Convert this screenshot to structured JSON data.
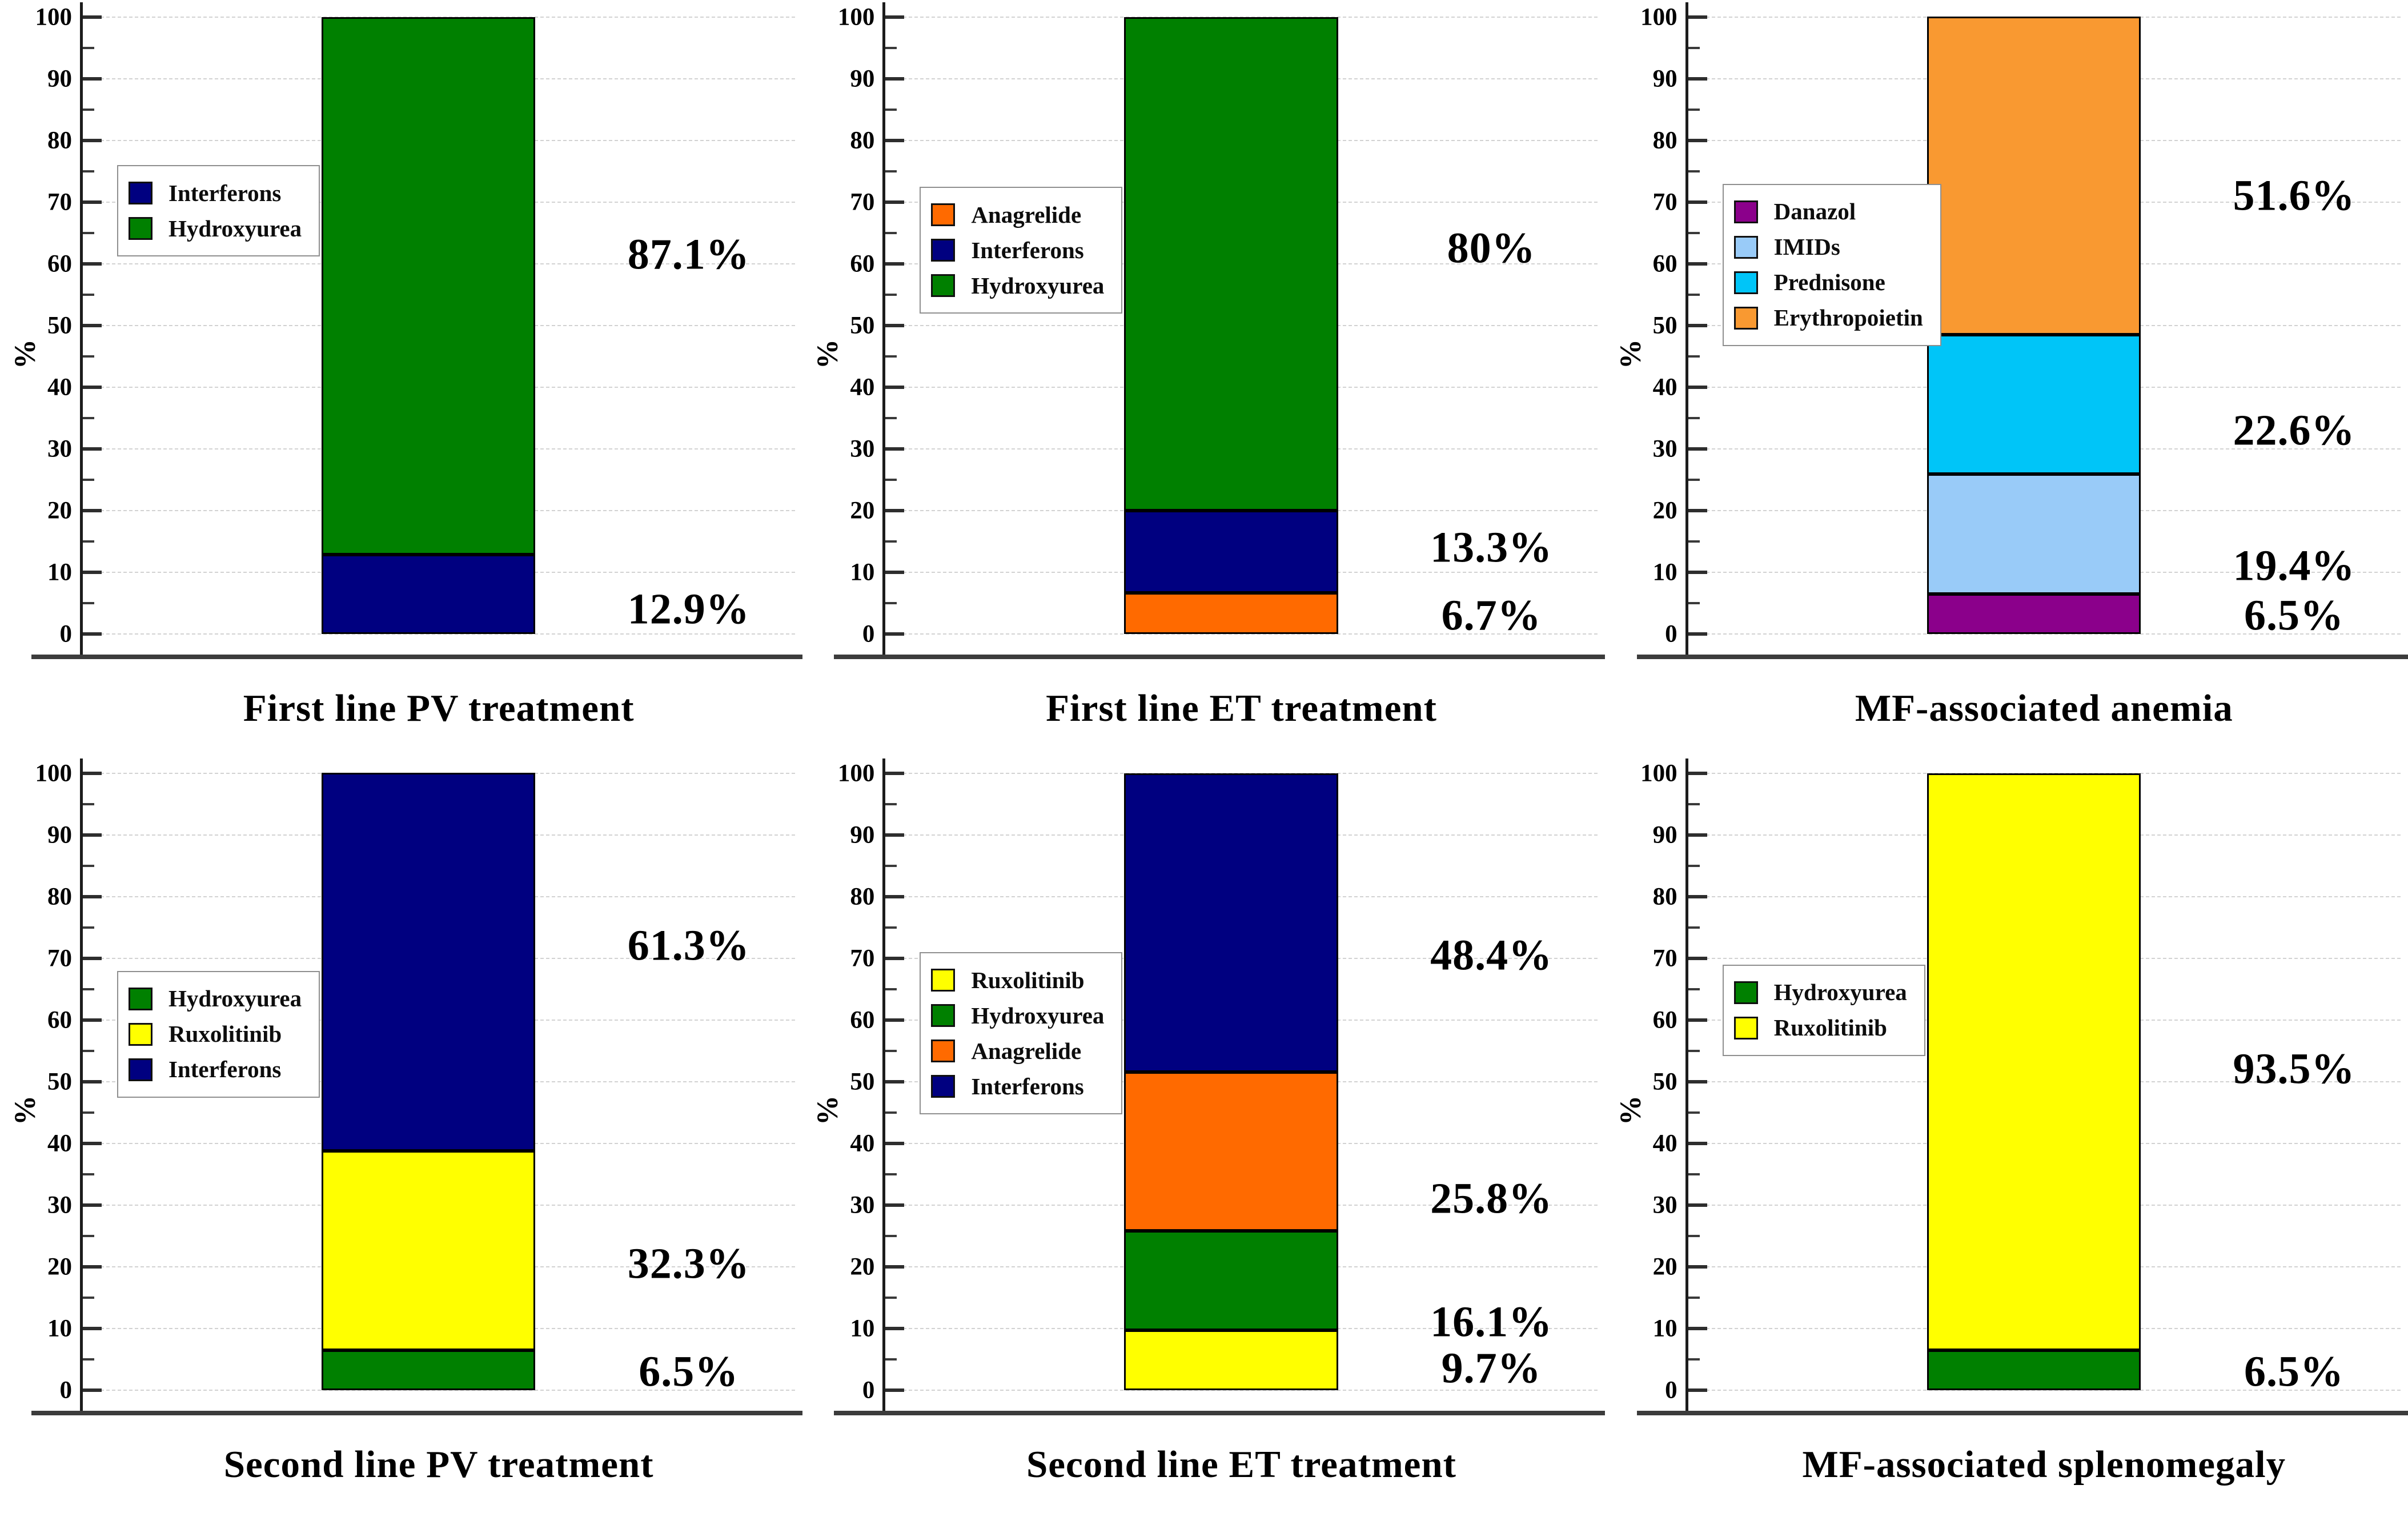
{
  "figure": {
    "background": "#ffffff",
    "axis_color": "#1c1c1c",
    "baseline_color": "#3c3c3c",
    "grid_color": "#d2d2d2",
    "text_color": "#000000"
  },
  "chart_data": [
    {
      "type": "bar",
      "stacked": true,
      "title": "First line PV treatment",
      "ylabel": "%",
      "ylim": [
        0,
        100
      ],
      "yticks": [
        0,
        10,
        20,
        30,
        40,
        50,
        60,
        70,
        80,
        90,
        100
      ],
      "grid": true,
      "legend_position": "inside-left",
      "legend_top_value": 76,
      "segments": [
        {
          "name": "Interferons",
          "value": 12.9,
          "label": "12.9%",
          "color": "#000080",
          "label_y": 4
        },
        {
          "name": "Hydroxyurea",
          "value": 87.1,
          "label": "87.1%",
          "color": "#008000",
          "label_y": 61.5
        }
      ]
    },
    {
      "type": "bar",
      "stacked": true,
      "title": "First line ET treatment",
      "ylabel": "%",
      "ylim": [
        0,
        100
      ],
      "yticks": [
        0,
        10,
        20,
        30,
        40,
        50,
        60,
        70,
        80,
        90,
        100
      ],
      "grid": true,
      "legend_position": "inside-left",
      "legend_top_value": 72.5,
      "segments": [
        {
          "name": "Anagrelide",
          "value": 6.7,
          "label": "6.7%",
          "color": "#FF6A00",
          "label_y": 3
        },
        {
          "name": "Interferons",
          "value": 13.3,
          "label": "13.3%",
          "color": "#000080",
          "label_y": 14
        },
        {
          "name": "Hydroxyurea",
          "value": 80,
          "label": "80%",
          "color": "#008000",
          "label_y": 62.5
        }
      ]
    },
    {
      "type": "bar",
      "stacked": true,
      "title": "MF-associated anemia",
      "ylabel": "%",
      "ylim": [
        0,
        100
      ],
      "yticks": [
        0,
        10,
        20,
        30,
        40,
        50,
        60,
        70,
        80,
        90,
        100
      ],
      "grid": true,
      "legend_position": "inside-left",
      "legend_top_value": 73,
      "segments": [
        {
          "name": "Danazol",
          "value": 6.5,
          "label": "6.5%",
          "color": "#8B008B",
          "label_y": 3
        },
        {
          "name": "IMIDs",
          "value": 19.4,
          "label": "19.4%",
          "color": "#99CBF8",
          "label_y": 11
        },
        {
          "name": "Prednisone",
          "value": 22.6,
          "label": "22.6%",
          "color": "#00C5F8",
          "label_y": 33
        },
        {
          "name": "Erythropoietin",
          "value": 51.6,
          "label": "51.6%",
          "color": "#F99931",
          "label_y": 71
        }
      ]
    },
    {
      "type": "bar",
      "stacked": true,
      "title": "Second line PV treatment",
      "ylabel": "%",
      "ylim": [
        0,
        100
      ],
      "yticks": [
        0,
        10,
        20,
        30,
        40,
        50,
        60,
        70,
        80,
        90,
        100
      ],
      "grid": true,
      "legend_position": "inside-left",
      "legend_top_value": 68,
      "segments": [
        {
          "name": "Hydroxyurea",
          "value": 6.5,
          "label": "6.5%",
          "color": "#008000",
          "label_y": 3
        },
        {
          "name": "Ruxolitinib",
          "value": 32.3,
          "label": "32.3%",
          "color": "#FFFF00",
          "label_y": 20.5
        },
        {
          "name": "Interferons",
          "value": 61.3,
          "label": "61.3%",
          "color": "#000080",
          "label_y": 72
        }
      ]
    },
    {
      "type": "bar",
      "stacked": true,
      "title": "Second line ET treatment",
      "ylabel": "%",
      "ylim": [
        0,
        100
      ],
      "yticks": [
        0,
        10,
        20,
        30,
        40,
        50,
        60,
        70,
        80,
        90,
        100
      ],
      "grid": true,
      "legend_position": "inside-left",
      "legend_top_value": 71,
      "segments": [
        {
          "name": "Ruxolitinib",
          "value": 9.7,
          "label": "9.7%",
          "color": "#FFFF00",
          "label_y": 3.5
        },
        {
          "name": "Hydroxyurea",
          "value": 16.1,
          "label": "16.1%",
          "color": "#008000",
          "label_y": 11
        },
        {
          "name": "Anagrelide",
          "value": 25.8,
          "label": "25.8%",
          "color": "#FF6A00",
          "label_y": 31
        },
        {
          "name": "Interferons",
          "value": 48.4,
          "label": "48.4%",
          "color": "#000080",
          "label_y": 70.5
        }
      ]
    },
    {
      "type": "bar",
      "stacked": true,
      "title": "MF-associated splenomegaly",
      "ylabel": "%",
      "ylim": [
        0,
        100
      ],
      "yticks": [
        0,
        10,
        20,
        30,
        40,
        50,
        60,
        70,
        80,
        90,
        100
      ],
      "grid": true,
      "legend_position": "inside-left",
      "legend_top_value": 69,
      "segments": [
        {
          "name": "Hydroxyurea",
          "value": 6.5,
          "label": "6.5%",
          "color": "#008000",
          "label_y": 3
        },
        {
          "name": "Ruxolitinib",
          "value": 93.5,
          "label": "93.5%",
          "color": "#FFFF00",
          "label_y": 52
        }
      ]
    }
  ]
}
